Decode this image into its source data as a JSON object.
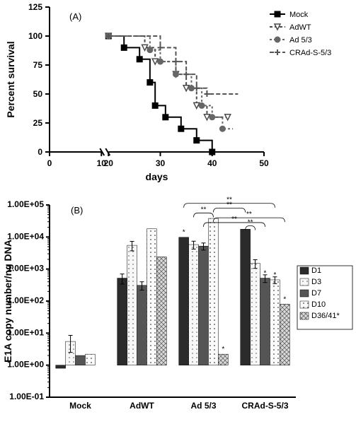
{
  "panelA": {
    "type": "line-step-survival",
    "label": "(A)",
    "xlabel": "days",
    "ylabel": "Percent survival",
    "xlim": [
      0,
      50
    ],
    "xbreak": [
      10,
      20
    ],
    "ylim": [
      0,
      125
    ],
    "xticks": [
      0,
      10,
      20,
      30,
      40,
      50
    ],
    "yticks": [
      0,
      25,
      50,
      75,
      100,
      125
    ],
    "label_fontsize": 14,
    "tick_fontsize": 12,
    "background_color": "#ffffff",
    "axis_color": "#000000",
    "legend_items": [
      "Mock",
      "AdWT",
      "Ad 5/3",
      "CRAd-S-5/3"
    ],
    "series": {
      "Mock": {
        "color": "#000000",
        "dash": "",
        "marker": "square-filled",
        "pts": [
          [
            20,
            100
          ],
          [
            23,
            100
          ],
          [
            23,
            90
          ],
          [
            26,
            90
          ],
          [
            26,
            80
          ],
          [
            28,
            80
          ],
          [
            28,
            60
          ],
          [
            29,
            60
          ],
          [
            29,
            40
          ],
          [
            31,
            40
          ],
          [
            31,
            30
          ],
          [
            34,
            30
          ],
          [
            34,
            20
          ],
          [
            37,
            20
          ],
          [
            37,
            10
          ],
          [
            40,
            10
          ],
          [
            40,
            0
          ]
        ]
      },
      "AdWT": {
        "color": "#4a4a4a",
        "dash": "4 3",
        "marker": "triangle-open",
        "pts": [
          [
            20,
            100
          ],
          [
            27,
            100
          ],
          [
            27,
            90
          ],
          [
            29,
            90
          ],
          [
            29,
            78
          ],
          [
            33,
            78
          ],
          [
            33,
            67
          ],
          [
            35,
            67
          ],
          [
            35,
            55
          ],
          [
            37,
            55
          ],
          [
            37,
            40
          ],
          [
            39,
            40
          ],
          [
            39,
            30
          ],
          [
            43,
            30
          ],
          [
            43,
            30
          ]
        ]
      },
      "Ad 5/3": {
        "color": "#666666",
        "dash": "3 3",
        "marker": "circle-filled",
        "pts": [
          [
            20,
            100
          ],
          [
            28,
            100
          ],
          [
            28,
            88
          ],
          [
            30,
            88
          ],
          [
            30,
            78
          ],
          [
            33,
            78
          ],
          [
            33,
            67
          ],
          [
            36,
            67
          ],
          [
            36,
            55
          ],
          [
            38,
            55
          ],
          [
            38,
            40
          ],
          [
            40,
            40
          ],
          [
            40,
            30
          ],
          [
            42,
            30
          ],
          [
            42,
            20
          ],
          [
            44,
            20
          ]
        ]
      },
      "CRAd-S-5/3": {
        "color": "#555555",
        "dash": "6 3",
        "marker": "plus",
        "pts": [
          [
            20,
            100
          ],
          [
            30,
            100
          ],
          [
            30,
            90
          ],
          [
            33,
            90
          ],
          [
            33,
            78
          ],
          [
            35,
            78
          ],
          [
            35,
            67
          ],
          [
            37,
            67
          ],
          [
            37,
            55
          ],
          [
            39,
            55
          ],
          [
            39,
            50
          ],
          [
            45,
            50
          ]
        ]
      }
    }
  },
  "panelB": {
    "type": "bar-grouped-log",
    "label": "(B)",
    "xlabel": "",
    "ylabel": "E1A copy number/ng DNA",
    "ylim_exp": [
      -1,
      5
    ],
    "yticks_exp": [
      -1,
      0,
      1,
      2,
      3,
      4,
      5
    ],
    "ytick_labels": [
      "1.00E-01",
      "1.00E+00",
      "1.00E+01",
      "1.00E+02",
      "1.00E+03",
      "1.00E+04",
      "1.00E+05"
    ],
    "label_fontsize": 11,
    "tick_fontsize": 8,
    "background_color": "#ffffff",
    "groups": [
      "Mock",
      "AdWT",
      "Ad 5/3",
      "CRAd-S-5/3"
    ],
    "subgroups": [
      "D1",
      "D3",
      "D7",
      "D10",
      "D36/41*"
    ],
    "patterns": {
      "D1": "solid-dark",
      "D3": "dots-light",
      "D7": "solid-medium",
      "D10": "dots-sparse",
      "D36/41*": "crosshatch"
    },
    "colors": {
      "solid-dark": "#2b2b2b",
      "dots-light": "#f5f5f5",
      "solid-medium": "#555555",
      "dots-sparse": "#f0f0f0",
      "crosshatch": "#bbbbbb"
    },
    "values": {
      "Mock": {
        "D1": 0.8,
        "D3": 5.5,
        "D7": 2.0,
        "D10": 2.2,
        "D36/41*": null
      },
      "AdWT": {
        "D1": 520,
        "D3": 5500,
        "D7": 310,
        "D10": 18000,
        "D36/41*": 2400
      },
      "Ad 5/3": {
        "D1": 9800,
        "D3": 5800,
        "D7": 5200,
        "D10": 38000,
        "D36/41*": 2.2
      },
      "CRAd-S-5/3": {
        "D1": 17500,
        "D3": 1500,
        "D7": 520,
        "D10": 460,
        "D36/41*": 80
      }
    },
    "errors": {
      "Mock": {
        "D3": 3
      },
      "AdWT": {
        "D1": 180,
        "D3": 1800,
        "D7": 90
      },
      "Ad 5/3": {
        "D3": 1600,
        "D7": 1300
      },
      "CRAd-S-5/3": {
        "D3": 450,
        "D7": 140,
        "D10": 110
      }
    },
    "significance": [
      {
        "type": "star",
        "group": "Ad 5/3",
        "sub": "D1",
        "text": "*"
      },
      {
        "type": "star",
        "group": "Ad 5/3",
        "sub": "D36/41*",
        "text": "*"
      },
      {
        "type": "star",
        "group": "CRAd-S-5/3",
        "sub": "D7",
        "text": "*"
      },
      {
        "type": "star",
        "group": "CRAd-S-5/3",
        "sub": "D10",
        "text": "*"
      },
      {
        "type": "star",
        "group": "CRAd-S-5/3",
        "sub": "D36/41*",
        "text": "*"
      },
      {
        "type": "bracket",
        "from": [
          "Ad 5/3",
          "D3"
        ],
        "to": [
          "Ad 5/3",
          "D10"
        ],
        "text": "**",
        "y": 4.75
      },
      {
        "type": "bracket",
        "from": [
          "Ad 5/3",
          "D7"
        ],
        "to": [
          "CRAd-S-5/3",
          "D7"
        ],
        "text": "**",
        "y": 4.45
      },
      {
        "type": "bracket",
        "from": [
          "Ad 5/3",
          "D10"
        ],
        "to": [
          "CRAd-S-5/3",
          "D1"
        ],
        "text": "**",
        "y": 4.9
      },
      {
        "type": "bracket",
        "from": [
          "Ad 5/3",
          "D1"
        ],
        "to": [
          "CRAd-S-5/3",
          "D10"
        ],
        "text": "**",
        "y": 5.05
      },
      {
        "type": "bracket",
        "from": [
          "Ad 5/3",
          "D10"
        ],
        "to": [
          "CRAd-S-5/3",
          "D36/41*"
        ],
        "text": "**",
        "y": 4.6
      },
      {
        "type": "bracket",
        "from": [
          "CRAd-S-5/3",
          "D1"
        ],
        "to": [
          "CRAd-S-5/3",
          "D3"
        ],
        "text": "**",
        "y": 4.35
      }
    ],
    "bar_width": 0.16,
    "group_gap": 0.25
  }
}
